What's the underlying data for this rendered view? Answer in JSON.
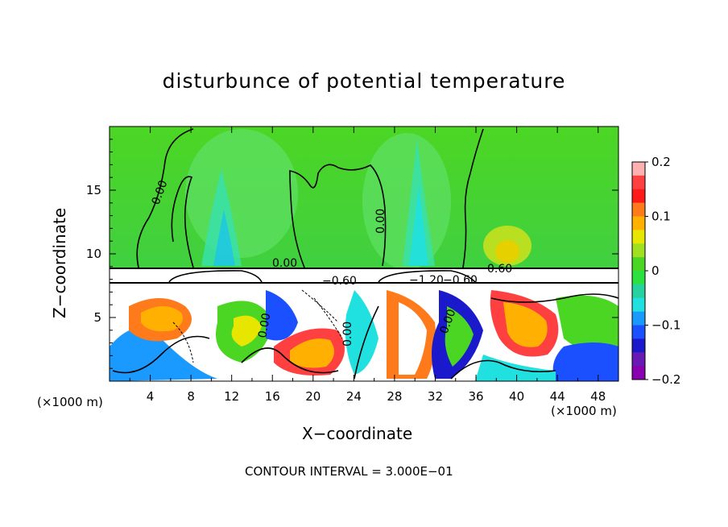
{
  "chart_data": {
    "type": "heatmap",
    "title": "disturbunce of potential temperature",
    "xlabel": "X−coordinate",
    "ylabel": "Z−coordinate",
    "x_unit_note": "(×1000 m)",
    "xlim": [
      0,
      50
    ],
    "ylim": [
      0,
      20
    ],
    "x_ticks": [
      "4",
      "8",
      "12",
      "16",
      "20",
      "24",
      "28",
      "32",
      "36",
      "40",
      "44",
      "48"
    ],
    "y_ticks": [
      "5",
      "10",
      "15"
    ],
    "colorbar": {
      "range": [
        -0.2,
        0.2
      ],
      "tick_labels": [
        "0.2",
        "0.1",
        "0",
        "−0.1",
        "−0.2"
      ],
      "colors": [
        "#ffb0b0",
        "#ff4040",
        "#ff1a1a",
        "#ff7a1a",
        "#ffb000",
        "#e6e600",
        "#a0e020",
        "#4cd624",
        "#2ce040",
        "#28d2a0",
        "#20e0e0",
        "#1a9aff",
        "#1a50ff",
        "#1a1acc",
        "#6a1ab4",
        "#8a00b0"
      ]
    },
    "contour_labels": [
      "0.00",
      "0.00",
      "0.00",
      "0.00",
      "−0.60",
      "−1.20",
      "−0.60",
      "0.60",
      "0.00",
      "0.00"
    ],
    "contour_interval_text": "CONTOUR INTERVAL =  3.000E−01"
  }
}
